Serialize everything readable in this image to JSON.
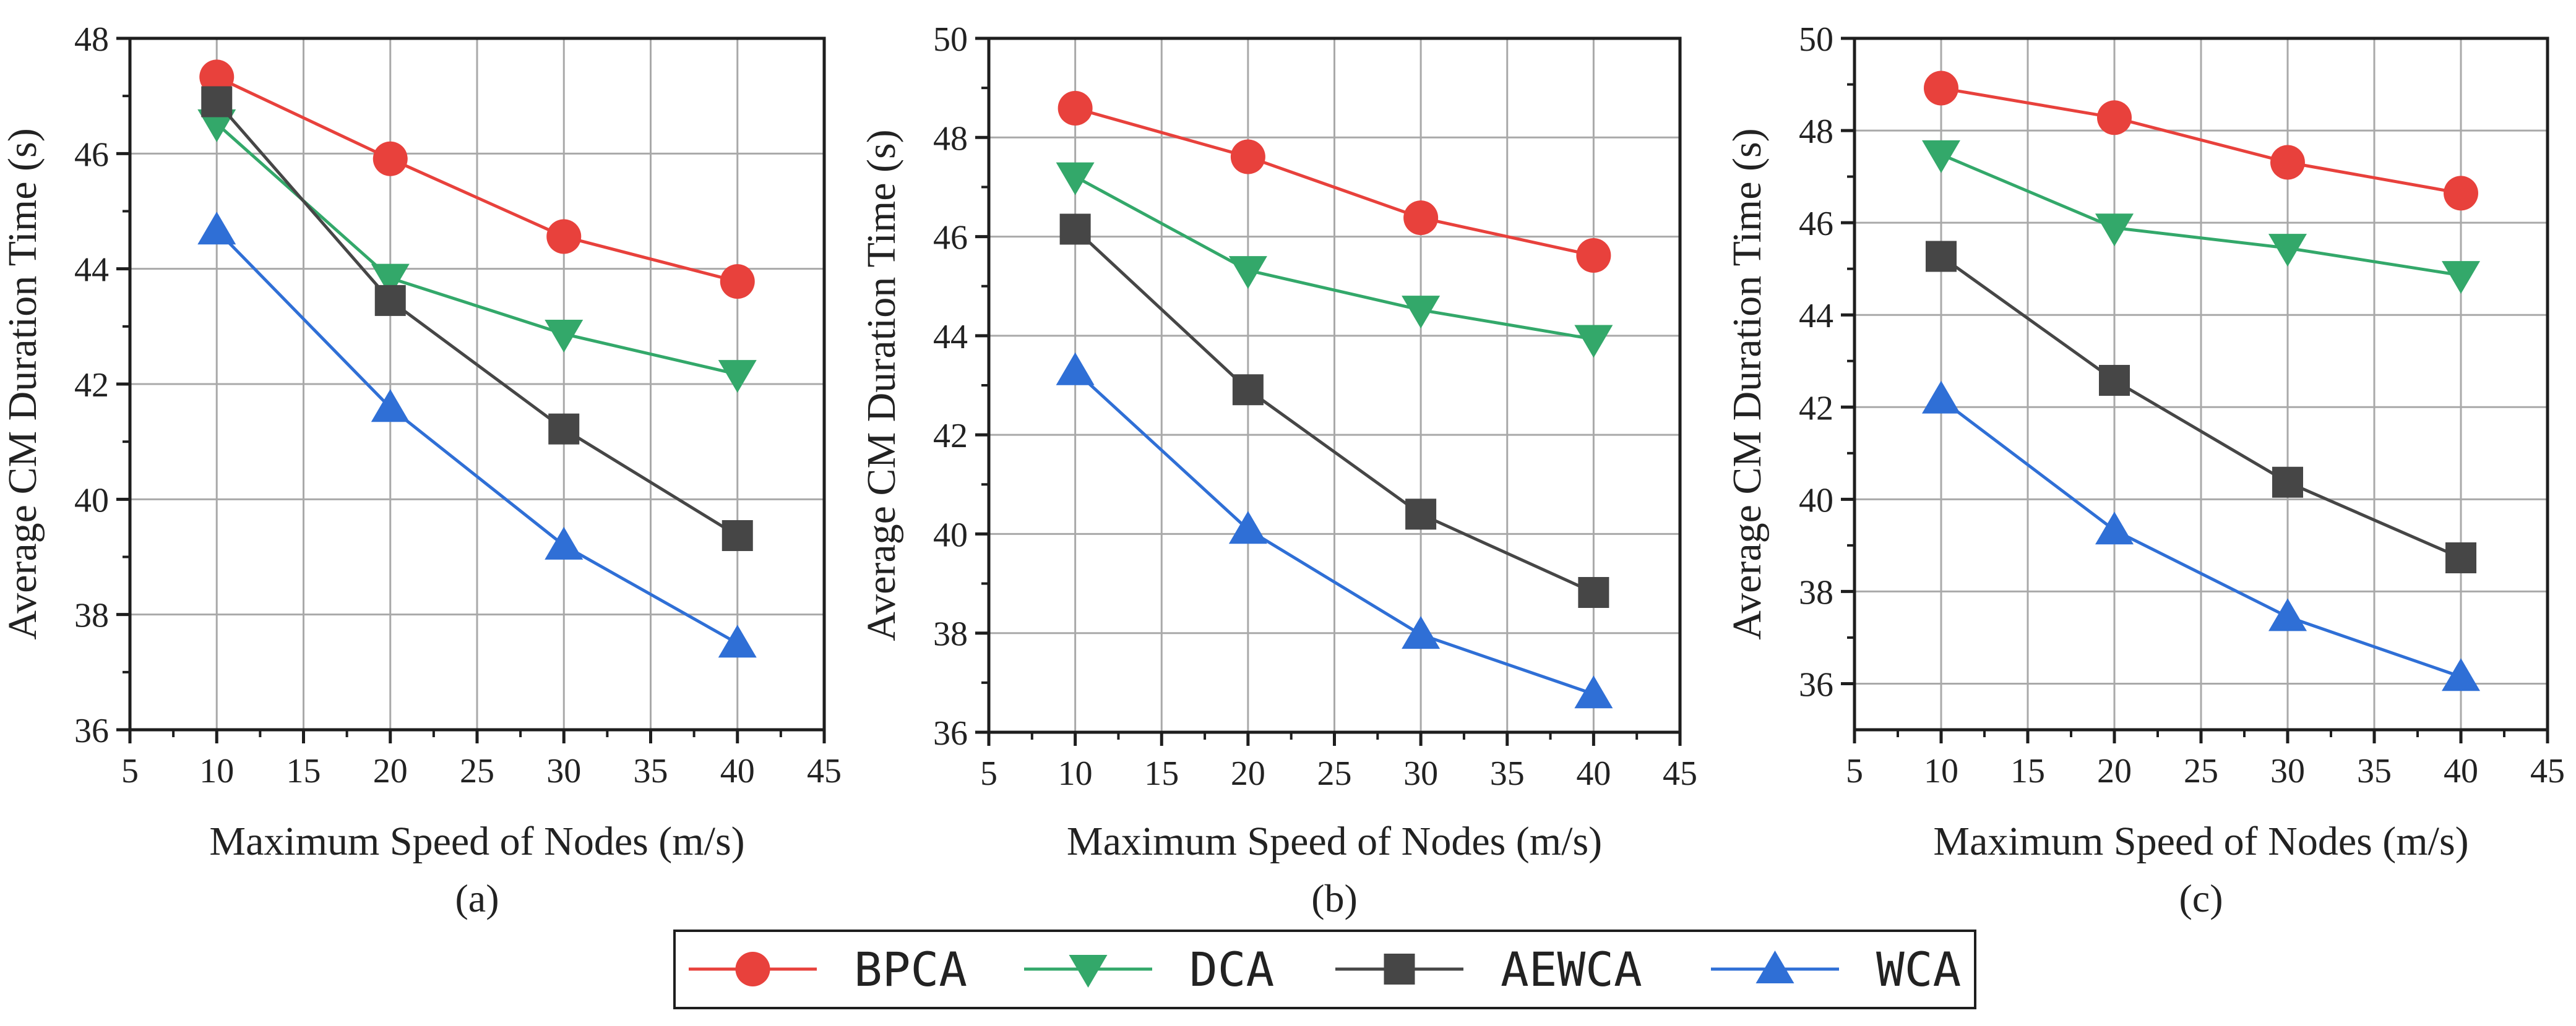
{
  "colors": {
    "BPCA": "#e8413c",
    "DCA": "#33a86a",
    "AEWCA": "#464646",
    "WCA": "#2f6fd6",
    "grid": "#a9a9a9",
    "axis": "#1e1e1e"
  },
  "legend": {
    "entries": [
      {
        "name": "BPCA",
        "marker": "circle"
      },
      {
        "name": "DCA",
        "marker": "triangle-down"
      },
      {
        "name": "AEWCA",
        "marker": "square"
      },
      {
        "name": "WCA",
        "marker": "triangle-up"
      }
    ]
  },
  "chart_data": [
    {
      "type": "line",
      "panel_label": "(a)",
      "xlabel": "Maximum Speed of Nodes (m/s)",
      "ylabel": "Average CM Duration Time (s)",
      "xlim": [
        5,
        45
      ],
      "ylim": [
        36,
        48
      ],
      "xticks": [
        5,
        10,
        15,
        20,
        25,
        30,
        35,
        40,
        45
      ],
      "yticks": [
        36,
        38,
        40,
        42,
        44,
        46,
        48
      ],
      "grid": true,
      "x": [
        10,
        20,
        30,
        40
      ],
      "series": [
        {
          "name": "BPCA",
          "values": [
            47.33,
            45.91,
            44.56,
            43.78
          ]
        },
        {
          "name": "DCA",
          "values": [
            46.52,
            43.84,
            42.87,
            42.17
          ]
        },
        {
          "name": "AEWCA",
          "values": [
            46.9,
            43.45,
            41.22,
            39.37
          ]
        },
        {
          "name": "WCA",
          "values": [
            44.67,
            41.59,
            39.2,
            37.5
          ]
        }
      ]
    },
    {
      "type": "line",
      "panel_label": "(b)",
      "xlabel": "Maximum Speed of Nodes (m/s)",
      "ylabel": "Average CM Duration Time (s)",
      "xlim": [
        5,
        45
      ],
      "ylim": [
        36,
        50
      ],
      "xticks": [
        5,
        10,
        15,
        20,
        25,
        30,
        35,
        40,
        45
      ],
      "yticks": [
        36,
        38,
        40,
        42,
        44,
        46,
        48,
        50
      ],
      "grid": true,
      "x": [
        10,
        20,
        30,
        40
      ],
      "series": [
        {
          "name": "BPCA",
          "values": [
            48.59,
            47.61,
            46.38,
            45.62
          ]
        },
        {
          "name": "DCA",
          "values": [
            47.21,
            45.32,
            44.52,
            43.93
          ]
        },
        {
          "name": "AEWCA",
          "values": [
            46.15,
            42.91,
            40.4,
            38.82
          ]
        },
        {
          "name": "WCA",
          "values": [
            43.29,
            40.09,
            37.97,
            36.77
          ]
        }
      ]
    },
    {
      "type": "line",
      "panel_label": "(c)",
      "xlabel": "Maximum Speed of Nodes (m/s)",
      "ylabel": "Average CM Duration Time (s)",
      "xlim": [
        5,
        45
      ],
      "ylim": [
        35,
        50
      ],
      "xticks": [
        5,
        10,
        15,
        20,
        25,
        30,
        35,
        40,
        45
      ],
      "yticks": [
        36,
        38,
        40,
        42,
        44,
        46,
        48,
        50
      ],
      "grid": true,
      "x": [
        10,
        20,
        30,
        40
      ],
      "series": [
        {
          "name": "BPCA",
          "values": [
            48.92,
            48.28,
            47.31,
            46.64
          ]
        },
        {
          "name": "DCA",
          "values": [
            47.48,
            45.89,
            45.45,
            44.86
          ]
        },
        {
          "name": "AEWCA",
          "values": [
            45.27,
            42.58,
            40.37,
            38.73
          ]
        },
        {
          "name": "WCA",
          "values": [
            42.17,
            39.33,
            37.45,
            36.15
          ]
        }
      ]
    }
  ]
}
